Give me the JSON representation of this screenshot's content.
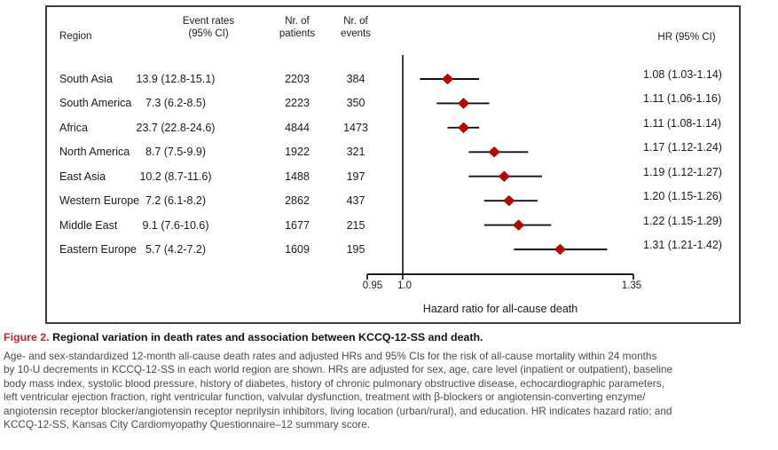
{
  "figure": {
    "table": {
      "headers": {
        "region": "Region",
        "event_rates_line1": "Event rates",
        "event_rates_line2": "(95% CI)",
        "patients_line1": "Nr. of",
        "patients_line2": "patients",
        "events_line1": "Nr. of",
        "events_line2": "events",
        "hr": "HR (95% CI)"
      }
    }
  },
  "chart_data": {
    "type": "forest_plot",
    "title": "",
    "xlabel": "Hazard ratio for all-cause death",
    "x_scale": "log",
    "x_axis_range": [
      0.95,
      1.35
    ],
    "x_tick_labels": [
      "0.95",
      "1.0",
      "1.35"
    ],
    "reference_line": 1.0,
    "marker_shape": "diamond",
    "marker_color": "#cc0000",
    "rows": [
      {
        "region": "South Asia",
        "event_rate": "13.9 (12.8-15.1)",
        "patients": "2203",
        "events": "384",
        "hr": 1.08,
        "ci_low": 1.03,
        "ci_high": 1.14,
        "hr_label": "1.08 (1.03-1.14)"
      },
      {
        "region": "South America",
        "event_rate": "7.3 (6.2-8.5)",
        "patients": "2223",
        "events": "350",
        "hr": 1.11,
        "ci_low": 1.06,
        "ci_high": 1.16,
        "hr_label": "1.11 (1.06-1.16)"
      },
      {
        "region": "Africa",
        "event_rate": "23.7 (22.8-24.6)",
        "patients": "4844",
        "events": "1473",
        "hr": 1.11,
        "ci_low": 1.08,
        "ci_high": 1.14,
        "hr_label": "1.11 (1.08-1.14)"
      },
      {
        "region": "North America",
        "event_rate": "8.7 (7.5-9.9)",
        "patients": "1922",
        "events": "321",
        "hr": 1.17,
        "ci_low": 1.12,
        "ci_high": 1.24,
        "hr_label": "1.17 (1.12-1.24)"
      },
      {
        "region": "East Asia",
        "event_rate": "10.2 (8.7-11.6)",
        "patients": "1488",
        "events": "197",
        "hr": 1.19,
        "ci_low": 1.12,
        "ci_high": 1.27,
        "hr_label": "1.19 (1.12-1.27)"
      },
      {
        "region": "Western Europe",
        "event_rate": "7.2 (6.1-8.2)",
        "patients": "2862",
        "events": "437",
        "hr": 1.2,
        "ci_low": 1.15,
        "ci_high": 1.26,
        "hr_label": "1.20 (1.15-1.26)"
      },
      {
        "region": "Middle East",
        "event_rate": "9.1 (7.6-10.6)",
        "patients": "1677",
        "events": "215",
        "hr": 1.22,
        "ci_low": 1.15,
        "ci_high": 1.29,
        "hr_label": "1.22 (1.15-1.29)"
      },
      {
        "region": "Eastern Europe",
        "event_rate": "5.7 (4.2-7.2)",
        "patients": "1609",
        "events": "195",
        "hr": 1.31,
        "ci_low": 1.21,
        "ci_high": 1.42,
        "hr_label": "1.31 (1.21-1.42)"
      }
    ]
  },
  "caption": {
    "label": "Figure 2.",
    "title": "Regional variation in death rates and association between KCCQ-12-SS and death.",
    "lines": [
      "Age- and sex-standardized 12-month all-cause death rates and adjusted HRs and 95% CIs for the risk of all-cause mortality within 24 months",
      "by 10-U decrements in KCCQ-12-SS in each world region are shown. HRs are adjusted for sex, age, care level (inpatient or outpatient), baseline",
      "body mass index, systolic blood pressure, history of diabetes, history of chronic pulmonary obstructive disease, echocardiographic parameters,",
      "left ventricular ejection fraction, right ventricular function, valvular dysfunction, treatment with β-blockers or angiotensin-converting enzyme/",
      "angiotensin receptor blocker/angiotensin receptor neprilysin inhibitors, living location (urban/rural), and education. HR indicates hazard ratio; and",
      "KCCQ-12-SS, Kansas City Cardiomyopathy Questionnaire–12 summary score."
    ]
  },
  "colors": {
    "figure_label_red": "#c8202f",
    "marker_red": "#cc0000",
    "caption_gray": "#4a4a4a",
    "axis_black": "#1a1a1a"
  }
}
